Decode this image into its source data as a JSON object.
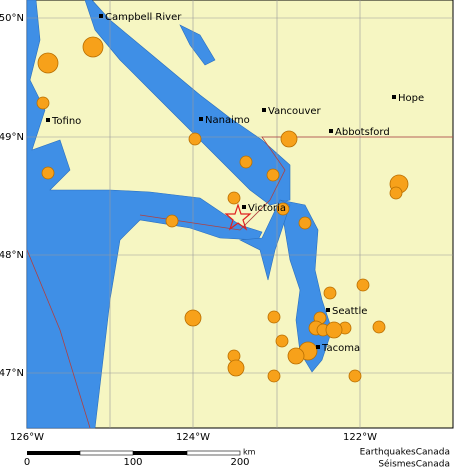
{
  "cities": [
    {
      "label": "Campbell River"
    },
    {
      "label": "Tofino"
    },
    {
      "label": "Nanaimo"
    },
    {
      "label": "Vancouver"
    },
    {
      "label": "Hope"
    },
    {
      "label": "Abbotsford"
    },
    {
      "label": "Victoria"
    },
    {
      "label": "Seattle"
    },
    {
      "label": "Tacoma"
    }
  ],
  "latitudes": [
    "50°N",
    "49°N",
    "48°N",
    "47°N"
  ],
  "longitudes": [
    "126°W",
    "124°W",
    "122°W"
  ],
  "scale": {
    "ticks": [
      0,
      100,
      200
    ],
    "unit": "km"
  },
  "credit": [
    "EarthquakesCanada",
    "SéismesCanada"
  ]
}
